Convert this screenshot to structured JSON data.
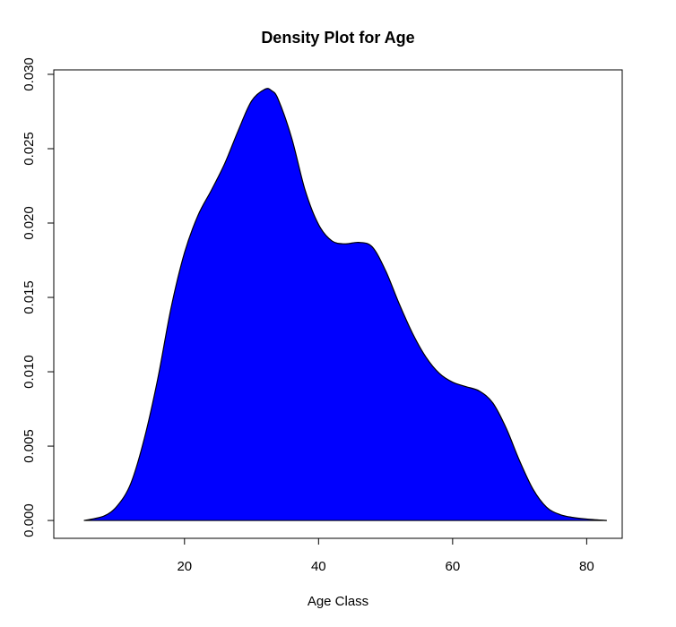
{
  "chart_data": {
    "type": "area",
    "title": "Density Plot for Age",
    "xlabel": "Age Class",
    "ylabel": "",
    "xlim": [
      0.5,
      85.3
    ],
    "ylim": [
      -0.0012,
      0.0303
    ],
    "x_ticks": [
      20,
      40,
      60,
      80
    ],
    "y_ticks": [
      0.0,
      0.005,
      0.01,
      0.015,
      0.02,
      0.025,
      0.03
    ],
    "x_tick_labels": [
      "20",
      "40",
      "60",
      "80"
    ],
    "y_tick_labels": [
      "0.000",
      "0.005",
      "0.010",
      "0.015",
      "0.020",
      "0.025",
      "0.030"
    ],
    "grid": false,
    "fill_color": "#0000ff",
    "line_color": "#000000",
    "series": [
      {
        "x": [
          5,
          8,
          10,
          12,
          14,
          16,
          18,
          20,
          22,
          24,
          26,
          28,
          30,
          32,
          33,
          34,
          36,
          38,
          40,
          42,
          44,
          46,
          48,
          50,
          52,
          54,
          56,
          58,
          60,
          62,
          64,
          66,
          68,
          70,
          72,
          74,
          76,
          78,
          80,
          83
        ],
        "y": [
          0.0,
          0.0003,
          0.001,
          0.0025,
          0.0055,
          0.0095,
          0.0143,
          0.018,
          0.0205,
          0.0222,
          0.024,
          0.0262,
          0.0282,
          0.029,
          0.0289,
          0.0283,
          0.0257,
          0.0222,
          0.0199,
          0.0188,
          0.0186,
          0.0187,
          0.0184,
          0.0168,
          0.0146,
          0.0126,
          0.011,
          0.0099,
          0.0093,
          0.009,
          0.0087,
          0.0079,
          0.0062,
          0.004,
          0.0021,
          0.0009,
          0.0004,
          0.0002,
          0.0001,
          0.0
        ]
      }
    ]
  }
}
